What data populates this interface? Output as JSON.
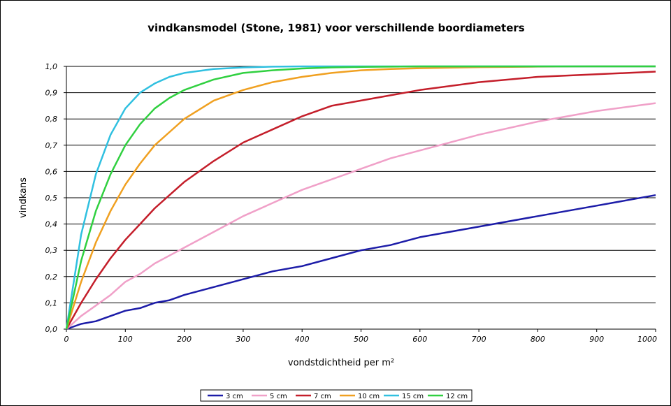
{
  "chart_data": {
    "type": "line",
    "title": "vindkansmodel (Stone, 1981) voor verschillende boordiameters",
    "xlabel": "vondstdichtheid per m²",
    "ylabel": "vindkans",
    "xlim": [
      0,
      1000
    ],
    "ylim": [
      0,
      1
    ],
    "xticks": [
      "0",
      "100",
      "200",
      "300",
      "400",
      "500",
      "600",
      "700",
      "800",
      "900",
      "1000"
    ],
    "yticks": [
      "0,0",
      "0,1",
      "0,2",
      "0,3",
      "0,4",
      "0,5",
      "0,6",
      "0,7",
      "0,8",
      "0,9",
      "1,0"
    ],
    "grid": true,
    "legend_position": "bottom",
    "x": [
      0,
      25,
      50,
      75,
      100,
      125,
      150,
      175,
      200,
      250,
      300,
      350,
      400,
      450,
      500,
      550,
      600,
      700,
      800,
      900,
      1000
    ],
    "series": [
      {
        "name": "3 cm",
        "color": "#1c1ca8",
        "values": [
          0,
          0.02,
          0.03,
          0.05,
          0.07,
          0.08,
          0.1,
          0.11,
          0.13,
          0.16,
          0.19,
          0.22,
          0.24,
          0.27,
          0.3,
          0.32,
          0.35,
          0.39,
          0.43,
          0.47,
          0.51
        ]
      },
      {
        "name": "5 cm",
        "color": "#f0a0c8",
        "values": [
          0,
          0.05,
          0.09,
          0.13,
          0.18,
          0.21,
          0.25,
          0.28,
          0.31,
          0.37,
          0.43,
          0.48,
          0.53,
          0.57,
          0.61,
          0.65,
          0.68,
          0.74,
          0.79,
          0.83,
          0.86
        ]
      },
      {
        "name": "7 cm",
        "color": "#c41e2a",
        "values": [
          0,
          0.1,
          0.19,
          0.27,
          0.34,
          0.4,
          0.46,
          0.51,
          0.56,
          0.64,
          0.71,
          0.76,
          0.81,
          0.85,
          0.87,
          0.89,
          0.91,
          0.94,
          0.96,
          0.97,
          0.98
        ]
      },
      {
        "name": "10 cm",
        "color": "#f0a020",
        "values": [
          0,
          0.18,
          0.33,
          0.45,
          0.55,
          0.63,
          0.7,
          0.75,
          0.8,
          0.87,
          0.91,
          0.94,
          0.96,
          0.975,
          0.985,
          0.99,
          0.993,
          0.997,
          0.999,
          1.0,
          1.0
        ]
      },
      {
        "name": "15 cm",
        "color": "#30c0e0",
        "values": [
          0,
          0.36,
          0.59,
          0.74,
          0.84,
          0.9,
          0.935,
          0.96,
          0.975,
          0.99,
          0.996,
          0.999,
          1.0,
          1.0,
          1.0,
          1.0,
          1.0,
          1.0,
          1.0,
          1.0,
          1.0
        ]
      },
      {
        "name": "12 cm",
        "color": "#30d040",
        "values": [
          0,
          0.26,
          0.45,
          0.59,
          0.7,
          0.78,
          0.84,
          0.88,
          0.91,
          0.95,
          0.975,
          0.985,
          0.992,
          0.996,
          0.998,
          0.999,
          1.0,
          1.0,
          1.0,
          1.0,
          1.0
        ]
      }
    ]
  }
}
